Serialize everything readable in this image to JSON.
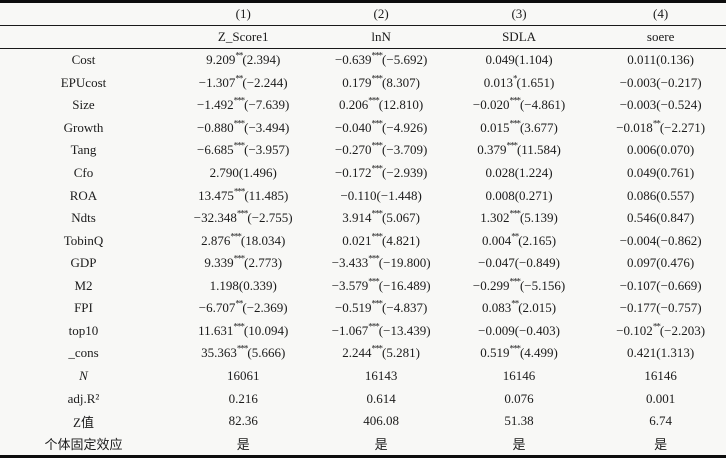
{
  "table": {
    "header_row1": [
      "",
      "(1)",
      "(2)",
      "(3)",
      "(4)"
    ],
    "header_row2": [
      "",
      "Z_Score1",
      "lnN",
      "SDLA",
      "soere"
    ],
    "rows": [
      {
        "label": "Cost",
        "cells": [
          "9.209**(2.394)",
          "−0.639***(−5.692)",
          "0.049(1.104)",
          "0.011(0.136)"
        ]
      },
      {
        "label": "EPUcost",
        "cells": [
          "−1.307**(−2.244)",
          "0.179***(8.307)",
          "0.013*(1.651)",
          "−0.003(−0.217)"
        ]
      },
      {
        "label": "Size",
        "cells": [
          "−1.492***(−7.639)",
          "0.206***(12.810)",
          "−0.020***(−4.861)",
          "−0.003(−0.524)"
        ]
      },
      {
        "label": "Growth",
        "cells": [
          "−0.880***(−3.494)",
          "−0.040***(−4.926)",
          "0.015***(3.677)",
          "−0.018**(−2.271)"
        ]
      },
      {
        "label": "Tang",
        "cells": [
          "−6.685***(−3.957)",
          "−0.270***(−3.709)",
          "0.379***(11.584)",
          "0.006(0.070)"
        ]
      },
      {
        "label": "Cfo",
        "cells": [
          "2.790(1.496)",
          "−0.172***(−2.939)",
          "0.028(1.224)",
          "0.049(0.761)"
        ]
      },
      {
        "label": "ROA",
        "cells": [
          "13.475***(11.485)",
          "−0.110(−1.448)",
          "0.008(0.271)",
          "0.086(0.557)"
        ]
      },
      {
        "label": "Ndts",
        "cells": [
          "−32.348***(−2.755)",
          "3.914***(5.067)",
          "1.302***(5.139)",
          "0.546(0.847)"
        ]
      },
      {
        "label": "TobinQ",
        "cells": [
          "2.876***(18.034)",
          "0.021***(4.821)",
          "0.004**(2.165)",
          "−0.004(−0.862)"
        ]
      },
      {
        "label": "GDP",
        "cells": [
          "9.339***(2.773)",
          "−3.433***(−19.800)",
          "−0.047(−0.849)",
          "0.097(0.476)"
        ]
      },
      {
        "label": "M2",
        "cells": [
          "1.198(0.339)",
          "−3.579***(−16.489)",
          "−0.299***(−5.156)",
          "−0.107(−0.669)"
        ]
      },
      {
        "label": "FPI",
        "cells": [
          "−6.707**(−2.369)",
          "−0.519***(−4.837)",
          "0.083**(2.015)",
          "−0.177(−0.757)"
        ]
      },
      {
        "label": "top10",
        "cells": [
          "11.631***(10.094)",
          "−1.067***(−13.439)",
          "−0.009(−0.403)",
          "−0.102**(−2.203)"
        ]
      },
      {
        "label": "_cons",
        "cells": [
          "35.363***(5.666)",
          "2.244***(5.281)",
          "0.519***(4.499)",
          "0.421(1.313)"
        ]
      },
      {
        "label": "N",
        "cells": [
          "16061",
          "16143",
          "16146",
          "16146"
        ]
      },
      {
        "label": "adj.R²",
        "cells": [
          "0.216",
          "0.614",
          "0.076",
          "0.001"
        ]
      },
      {
        "label": "Z值",
        "cells": [
          "82.36",
          "406.08",
          "51.38",
          "6.74"
        ]
      },
      {
        "label": "个体固定效应",
        "cells": [
          "是",
          "是",
          "是",
          "是"
        ]
      }
    ]
  },
  "colors": {
    "text": "#1b1b1b",
    "background": "#f8f8f6",
    "rule": "#0d0d0d"
  }
}
